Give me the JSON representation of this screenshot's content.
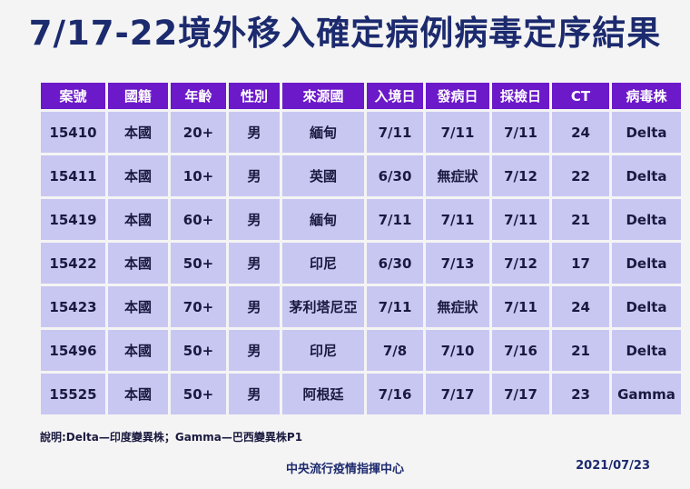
{
  "title": "7/17-22境外移入確定病例病毒定序結果",
  "columns": [
    "案號",
    "國籍",
    "年齡",
    "性別",
    "來源國",
    "入境日",
    "發病日",
    "採檢日",
    "CT",
    "病毒株"
  ],
  "rows": [
    [
      "15410",
      "本國",
      "20+",
      "男",
      "緬甸",
      "7/11",
      "7/11",
      "7/11",
      "24",
      "Delta"
    ],
    [
      "15411",
      "本國",
      "10+",
      "男",
      "英國",
      "6/30",
      "無症狀",
      "7/12",
      "22",
      "Delta"
    ],
    [
      "15419",
      "本國",
      "60+",
      "男",
      "緬甸",
      "7/11",
      "7/11",
      "7/11",
      "21",
      "Delta"
    ],
    [
      "15422",
      "本國",
      "50+",
      "男",
      "印尼",
      "6/30",
      "7/13",
      "7/12",
      "17",
      "Delta"
    ],
    [
      "15423",
      "本國",
      "70+",
      "男",
      "茅利塔尼亞",
      "7/11",
      "無症狀",
      "7/11",
      "24",
      "Delta"
    ],
    [
      "15496",
      "本國",
      "50+",
      "男",
      "印尼",
      "7/8",
      "7/10",
      "7/16",
      "21",
      "Delta"
    ],
    [
      "15525",
      "本國",
      "50+",
      "男",
      "阿根廷",
      "7/16",
      "7/17",
      "7/17",
      "23",
      "Gamma"
    ]
  ],
  "note": "說明:Delta—印度變異株；Gamma—巴西變異株P1",
  "footer": {
    "organization": "中央流行疫情指揮中心",
    "date": "2021/07/23"
  },
  "colors": {
    "header_bg": "#6b19c9",
    "cell_bg": "#c8c7f2",
    "title": "#1c2a6e"
  }
}
